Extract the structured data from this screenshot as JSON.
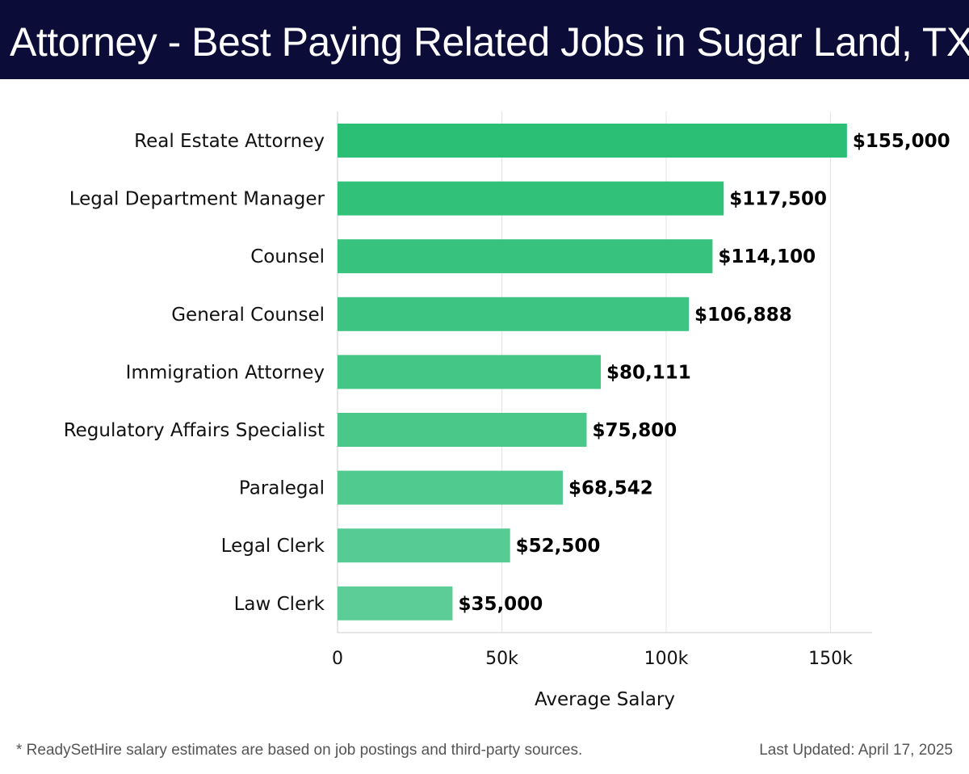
{
  "header": {
    "title": "Attorney - Best Paying Related Jobs in Sugar Land, TX"
  },
  "footer": {
    "note": "* ReadySetHire salary estimates are based on job postings and third-party sources.",
    "updated": "Last Updated: April 17, 2025"
  },
  "chart_data": {
    "type": "bar",
    "orientation": "horizontal",
    "title": "Attorney - Best Paying Related Jobs in Sugar Land, TX",
    "xlabel": "Average Salary",
    "ylabel": "",
    "xlim": [
      0,
      163000
    ],
    "grid": true,
    "categories": [
      "Real Estate Attorney",
      "Legal Department Manager",
      "Counsel",
      "General Counsel",
      "Immigration Attorney",
      "Regulatory Affairs Specialist",
      "Paralegal",
      "Legal Clerk",
      "Law Clerk"
    ],
    "values": [
      155000,
      117500,
      114100,
      106888,
      80111,
      75800,
      68542,
      52500,
      35000
    ],
    "value_labels": [
      "$155,000",
      "$117,500",
      "$114,100",
      "$106,888",
      "$80,111",
      "$75,800",
      "$68,542",
      "$52,500",
      "$35,000"
    ],
    "ticks": [
      0,
      50000,
      100000,
      150000
    ],
    "tick_labels": [
      "0",
      "50k",
      "100k",
      "150k"
    ],
    "colors": {
      "bar_start": "#2bbf75",
      "bar_end": "#5ccd97",
      "grid": "#e3e3e3",
      "axis": "#cccccc",
      "header_bg": "#0b0c37"
    }
  }
}
